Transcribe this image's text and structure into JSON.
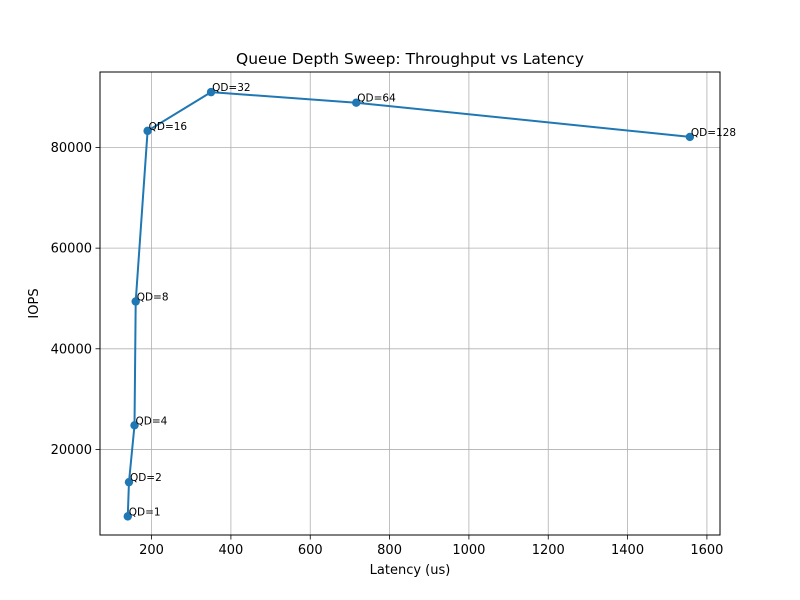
{
  "chart_data": {
    "type": "line",
    "title": "Queue Depth Sweep: Throughput vs Latency",
    "xlabel": "Latency (us)",
    "ylabel": "IOPS",
    "xlim": [
      70,
      1633
    ],
    "ylim": [
      3000,
      95000
    ],
    "xticks": [
      200,
      400,
      600,
      800,
      1000,
      1200,
      1400,
      1600
    ],
    "yticks": [
      20000,
      40000,
      60000,
      80000
    ],
    "grid": true,
    "series": [
      {
        "color": "#1f77b4",
        "marker": "circle",
        "points": [
          {
            "label": "QD=1",
            "x": 140,
            "y": 6700
          },
          {
            "label": "QD=2",
            "x": 143,
            "y": 13500
          },
          {
            "label": "QD=4",
            "x": 157,
            "y": 24800
          },
          {
            "label": "QD=8",
            "x": 160,
            "y": 49400
          },
          {
            "label": "QD=16",
            "x": 190,
            "y": 83300
          },
          {
            "label": "QD=32",
            "x": 350,
            "y": 91000
          },
          {
            "label": "QD=64",
            "x": 716,
            "y": 88900
          },
          {
            "label": "QD=128",
            "x": 1557,
            "y": 82100
          }
        ]
      }
    ]
  }
}
